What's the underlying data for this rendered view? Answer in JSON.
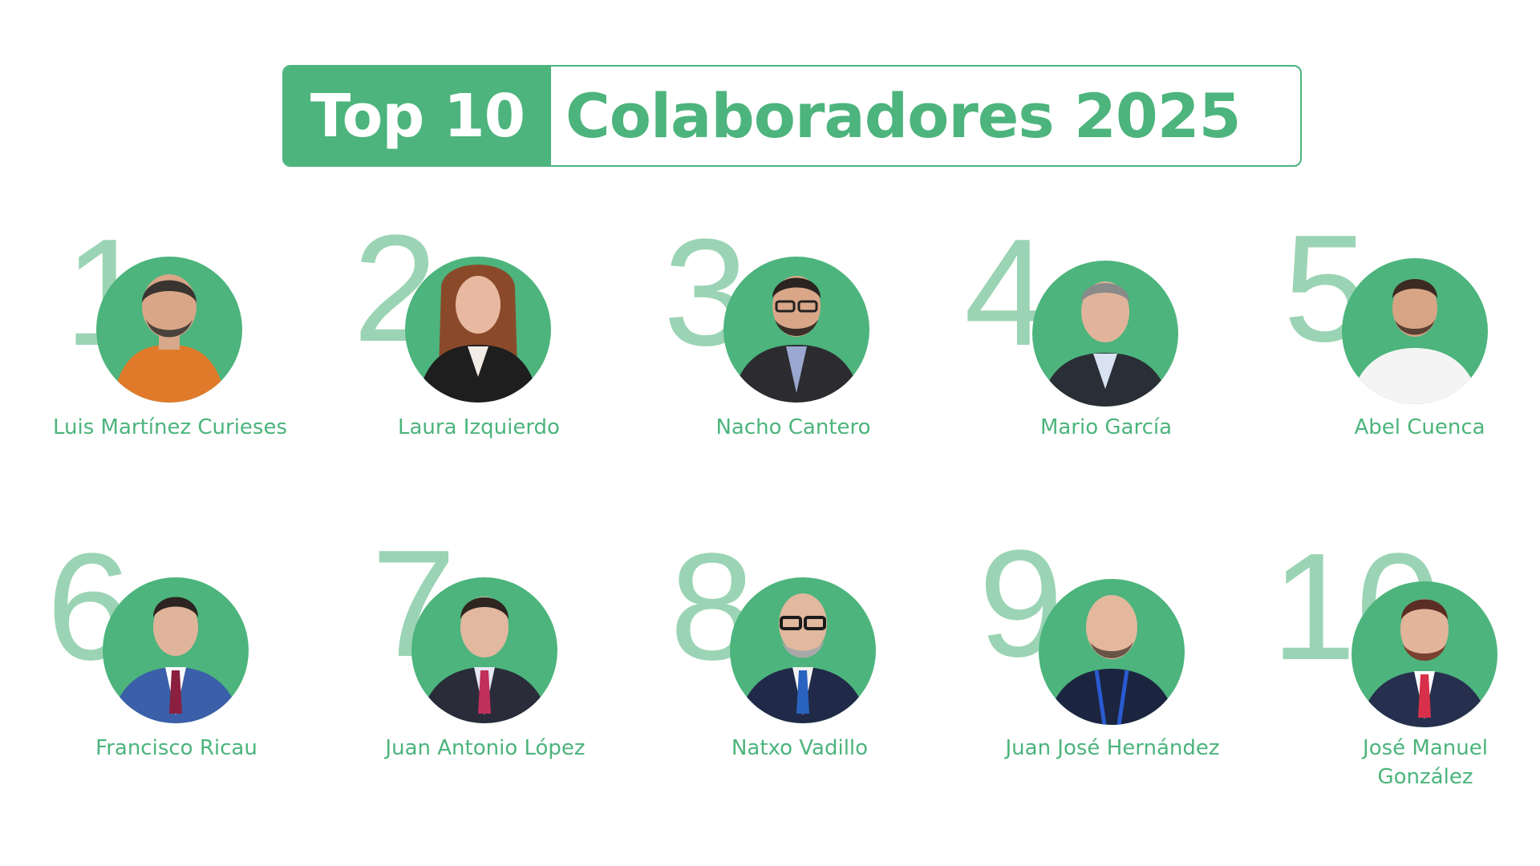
{
  "title": {
    "highlight": "Top 10",
    "text": "Colaboradores 2025"
  },
  "colors": {
    "accent": "#4cb47c",
    "rank_number": "#9bd4b4",
    "background": "#ffffff"
  },
  "collaborators": [
    {
      "rank": "1",
      "name": "Luis Martínez Curieses"
    },
    {
      "rank": "2",
      "name": "Laura Izquierdo"
    },
    {
      "rank": "3",
      "name": "Nacho Cantero"
    },
    {
      "rank": "4",
      "name": "Mario García"
    },
    {
      "rank": "5",
      "name": "Abel Cuenca"
    },
    {
      "rank": "6",
      "name": "Francisco Ricau"
    },
    {
      "rank": "7",
      "name": "Juan Antonio López"
    },
    {
      "rank": "8",
      "name": "Natxo Vadillo"
    },
    {
      "rank": "9",
      "name": "Juan José Hernández"
    },
    {
      "rank": "10",
      "name": "José Manuel González"
    }
  ]
}
